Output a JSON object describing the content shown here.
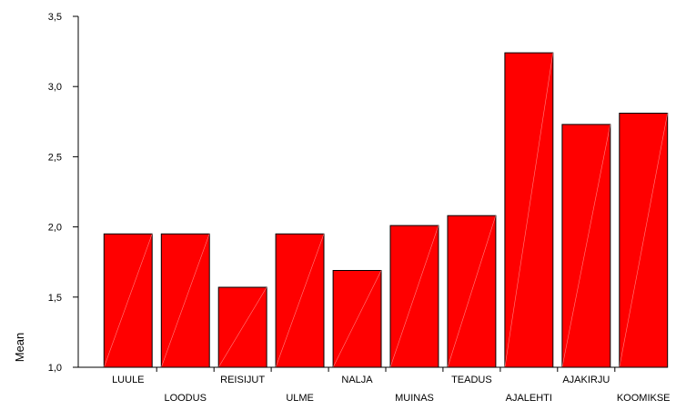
{
  "chart_data": {
    "type": "bar",
    "title": "",
    "xlabel": "",
    "ylabel": "Mean",
    "ylim": [
      1.0,
      3.5
    ],
    "yticks": [
      1.0,
      1.5,
      2.0,
      2.5,
      3.0,
      3.5
    ],
    "ytick_labels": [
      "1,0",
      "1,5",
      "2,0",
      "2,5",
      "3,0",
      "3,5"
    ],
    "categories": [
      "LUULE",
      "LOODUS",
      "REISIJUT",
      "ULME",
      "NALJA",
      "MUINAS",
      "TEADUS",
      "AJALEHTI",
      "AJAKIRJU",
      "KOOMIKSE"
    ],
    "values": [
      1.95,
      1.95,
      1.57,
      1.95,
      1.69,
      2.01,
      2.08,
      3.24,
      2.73,
      2.81
    ],
    "grid": false,
    "legend": "none",
    "bar_color": "#ff0000",
    "bar_edge_color": "#000000"
  }
}
